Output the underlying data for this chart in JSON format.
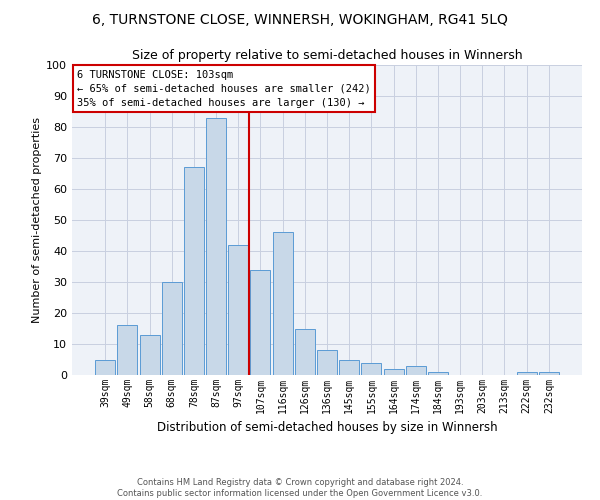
{
  "title": "6, TURNSTONE CLOSE, WINNERSH, WOKINGHAM, RG41 5LQ",
  "subtitle": "Size of property relative to semi-detached houses in Winnersh",
  "xlabel": "Distribution of semi-detached houses by size in Winnersh",
  "ylabel": "Number of semi-detached properties",
  "bar_labels": [
    "39sqm",
    "49sqm",
    "58sqm",
    "68sqm",
    "78sqm",
    "87sqm",
    "97sqm",
    "107sqm",
    "116sqm",
    "126sqm",
    "136sqm",
    "145sqm",
    "155sqm",
    "164sqm",
    "174sqm",
    "184sqm",
    "193sqm",
    "203sqm",
    "213sqm",
    "222sqm",
    "232sqm"
  ],
  "bar_values": [
    5,
    16,
    13,
    30,
    67,
    83,
    42,
    34,
    46,
    15,
    8,
    5,
    4,
    2,
    3,
    1,
    0,
    0,
    0,
    1,
    1
  ],
  "bar_color": "#c8d8e8",
  "bar_edge_color": "#5b9bd5",
  "bg_color": "#eef2f8",
  "grid_color": "#c8cfe0",
  "property_label": "6 TURNSTONE CLOSE: 103sqm",
  "pct_smaller": 65,
  "pct_larger": 35,
  "n_smaller": 242,
  "n_larger": 130,
  "vline_x_index": 7.0,
  "annotation_box_color": "#cc0000",
  "ylim": [
    0,
    100
  ],
  "title_fontsize": 10,
  "subtitle_fontsize": 9,
  "footer_text": "Contains HM Land Registry data © Crown copyright and database right 2024.\nContains public sector information licensed under the Open Government Licence v3.0."
}
